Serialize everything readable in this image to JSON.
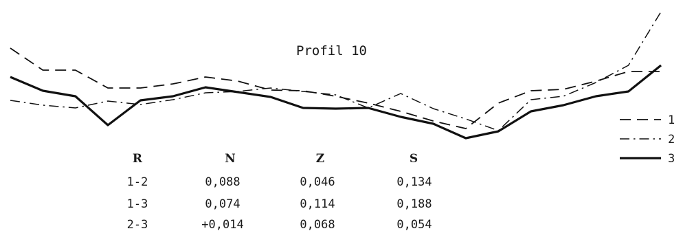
{
  "chart_data": {
    "type": "line",
    "title": "Profil 10",
    "xlabel": "",
    "ylabel": "",
    "grid": false,
    "legend_position": "right",
    "series": [
      {
        "name": "1",
        "line_style": "dashed",
        "points": [
          [
            0,
            70
          ],
          [
            3,
            102
          ],
          [
            6,
            102
          ],
          [
            9,
            128
          ],
          [
            12,
            128
          ],
          [
            15,
            122
          ],
          [
            18,
            112
          ],
          [
            21,
            118
          ],
          [
            24,
            131
          ],
          [
            27,
            132
          ],
          [
            30,
            140
          ],
          [
            33,
            150
          ],
          [
            36,
            162
          ],
          [
            39,
            176
          ],
          [
            42,
            187
          ],
          [
            45,
            150
          ],
          [
            48,
            132
          ],
          [
            51,
            130
          ],
          [
            54,
            118
          ],
          [
            57,
            104
          ],
          [
            60,
            104
          ]
        ]
      },
      {
        "name": "2",
        "line_style": "dashdot",
        "points": [
          [
            0,
            146
          ],
          [
            3,
            153
          ],
          [
            6,
            157
          ],
          [
            9,
            147
          ],
          [
            12,
            152
          ],
          [
            15,
            145
          ],
          [
            18,
            135
          ],
          [
            21,
            133
          ],
          [
            24,
            128
          ],
          [
            27,
            133
          ],
          [
            30,
            138
          ],
          [
            33,
            157
          ],
          [
            36,
            136
          ],
          [
            39,
            158
          ],
          [
            42,
            173
          ],
          [
            45,
            190
          ],
          [
            48,
            145
          ],
          [
            51,
            140
          ],
          [
            54,
            120
          ],
          [
            57,
            95
          ],
          [
            60,
            17
          ]
        ]
      },
      {
        "name": "3",
        "line_style": "solid",
        "points": [
          [
            0,
            112
          ],
          [
            3,
            132
          ],
          [
            6,
            140
          ],
          [
            9,
            182
          ],
          [
            12,
            146
          ],
          [
            15,
            140
          ],
          [
            18,
            127
          ],
          [
            21,
            134
          ],
          [
            24,
            141
          ],
          [
            27,
            157
          ],
          [
            30,
            158
          ],
          [
            33,
            157
          ],
          [
            36,
            170
          ],
          [
            39,
            180
          ],
          [
            42,
            201
          ],
          [
            45,
            191
          ],
          [
            48,
            162
          ],
          [
            51,
            153
          ],
          [
            54,
            140
          ],
          [
            57,
            133
          ],
          [
            60,
            95
          ]
        ]
      }
    ],
    "table": {
      "headers": [
        "R",
        "N",
        "Z",
        "S"
      ],
      "rows": [
        [
          "1-2",
          "0,088",
          "0,046",
          "0,134"
        ],
        [
          "1-3",
          "0,074",
          "0,114",
          "0,188"
        ],
        [
          "2-3",
          "+0,014",
          "0,068",
          "0,054"
        ]
      ]
    }
  }
}
